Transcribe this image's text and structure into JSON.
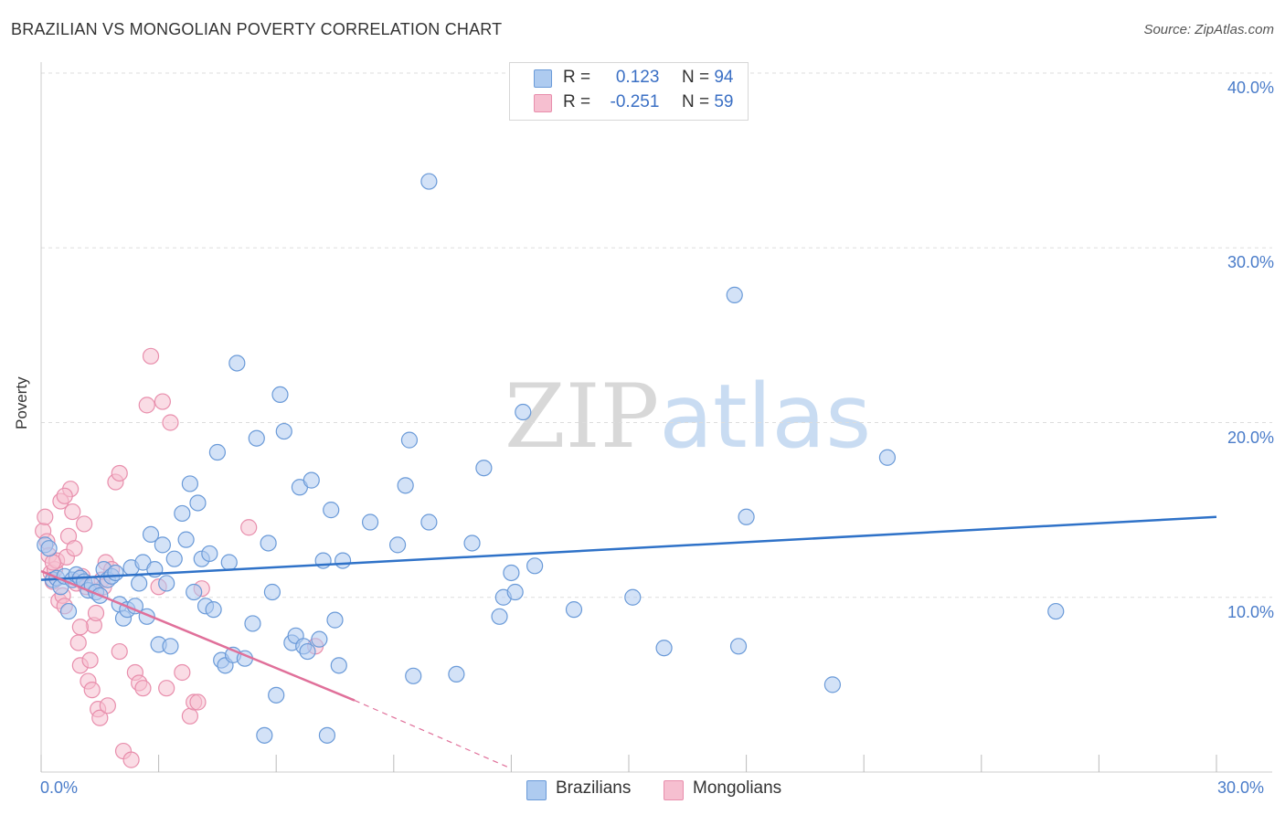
{
  "header": {
    "title": "BRAZILIAN VS MONGOLIAN POVERTY CORRELATION CHART",
    "source": "Source: ZipAtlas.com"
  },
  "watermark": {
    "zip": "ZIP",
    "atlas": "atlas"
  },
  "legend": {
    "rows": [
      {
        "r_label": "R =",
        "r_value": "0.123",
        "n_label": "N =",
        "n_value": "94"
      },
      {
        "r_label": "R =",
        "r_value": "-0.251",
        "n_label": "N =",
        "n_value": "59"
      }
    ]
  },
  "bottom_legend": {
    "brazilians": "Brazilians",
    "mongolians": "Mongolians"
  },
  "colors": {
    "brazilians_fill": "#aecbf0",
    "brazilians_stroke": "#6a9ad8",
    "brazilians_line": "#2f72c8",
    "mongolians_fill": "#f6bfd0",
    "mongolians_stroke": "#e88eac",
    "mongolians_line": "#e0709a",
    "tick_label": "#4a7cc9",
    "grid": "#dddddd"
  },
  "chart_data": {
    "type": "scatter",
    "title": "BRAZILIAN VS MONGOLIAN POVERTY CORRELATION CHART",
    "xlabel": "",
    "ylabel": "Poverty",
    "xlim": [
      0,
      30
    ],
    "ylim": [
      0,
      40
    ],
    "x_tick_labels": [
      "0.0%",
      "30.0%"
    ],
    "y_ticks": [
      10,
      20,
      30,
      40
    ],
    "y_tick_labels": [
      "10.0%",
      "20.0%",
      "30.0%",
      "40.0%"
    ],
    "grid": "horizontal dashed",
    "legend_position": "top-center",
    "series": [
      {
        "name": "Brazilians",
        "r": 0.123,
        "n": 94,
        "trend": {
          "x": [
            0,
            30
          ],
          "y": [
            11.0,
            14.6
          ]
        },
        "points": [
          [
            0.1,
            13.0
          ],
          [
            0.2,
            12.8
          ],
          [
            0.3,
            11.0
          ],
          [
            0.4,
            11.1
          ],
          [
            0.5,
            10.6
          ],
          [
            0.6,
            11.2
          ],
          [
            0.7,
            9.2
          ],
          [
            0.8,
            11.0
          ],
          [
            0.9,
            11.3
          ],
          [
            1.0,
            11.1
          ],
          [
            1.1,
            10.9
          ],
          [
            1.2,
            10.4
          ],
          [
            1.3,
            10.7
          ],
          [
            1.4,
            10.3
          ],
          [
            1.5,
            10.1
          ],
          [
            1.6,
            11.6
          ],
          [
            1.7,
            11.0
          ],
          [
            1.8,
            11.2
          ],
          [
            1.9,
            11.4
          ],
          [
            2.0,
            9.6
          ],
          [
            2.1,
            8.8
          ],
          [
            2.2,
            9.3
          ],
          [
            2.3,
            11.7
          ],
          [
            2.4,
            9.5
          ],
          [
            2.5,
            10.8
          ],
          [
            2.6,
            12.0
          ],
          [
            2.7,
            8.9
          ],
          [
            2.8,
            13.6
          ],
          [
            2.9,
            11.6
          ],
          [
            3.0,
            7.3
          ],
          [
            3.1,
            13.0
          ],
          [
            3.2,
            10.8
          ],
          [
            3.3,
            7.2
          ],
          [
            3.4,
            12.2
          ],
          [
            3.6,
            14.8
          ],
          [
            3.7,
            13.3
          ],
          [
            3.8,
            16.5
          ],
          [
            3.9,
            10.3
          ],
          [
            4.0,
            15.4
          ],
          [
            4.1,
            12.2
          ],
          [
            4.2,
            9.5
          ],
          [
            4.3,
            12.5
          ],
          [
            4.4,
            9.3
          ],
          [
            4.5,
            18.3
          ],
          [
            4.6,
            6.4
          ],
          [
            4.7,
            6.1
          ],
          [
            4.8,
            12.0
          ],
          [
            4.9,
            6.7
          ],
          [
            5.0,
            23.4
          ],
          [
            5.2,
            6.5
          ],
          [
            5.4,
            8.5
          ],
          [
            5.5,
            19.1
          ],
          [
            5.7,
            2.1
          ],
          [
            5.8,
            13.1
          ],
          [
            5.9,
            10.3
          ],
          [
            6.0,
            4.4
          ],
          [
            6.1,
            21.6
          ],
          [
            6.2,
            19.5
          ],
          [
            6.4,
            7.4
          ],
          [
            6.5,
            7.8
          ],
          [
            6.6,
            16.3
          ],
          [
            6.7,
            7.2
          ],
          [
            6.8,
            6.9
          ],
          [
            6.9,
            16.7
          ],
          [
            7.1,
            7.6
          ],
          [
            7.2,
            12.1
          ],
          [
            7.3,
            2.1
          ],
          [
            7.4,
            15.0
          ],
          [
            7.5,
            8.7
          ],
          [
            7.6,
            6.1
          ],
          [
            7.7,
            12.1
          ],
          [
            8.4,
            14.3
          ],
          [
            9.1,
            13.0
          ],
          [
            9.3,
            16.4
          ],
          [
            9.4,
            19.0
          ],
          [
            9.5,
            5.5
          ],
          [
            9.9,
            14.3
          ],
          [
            10.6,
            5.6
          ],
          [
            9.9,
            33.8
          ],
          [
            11.0,
            13.1
          ],
          [
            11.3,
            17.4
          ],
          [
            11.7,
            8.9
          ],
          [
            11.8,
            10.0
          ],
          [
            12.0,
            11.4
          ],
          [
            12.1,
            10.3
          ],
          [
            12.3,
            20.6
          ],
          [
            12.6,
            11.8
          ],
          [
            13.6,
            9.3
          ],
          [
            15.1,
            10.0
          ],
          [
            15.9,
            7.1
          ],
          [
            17.7,
            27.3
          ],
          [
            17.8,
            7.2
          ],
          [
            18.0,
            14.6
          ],
          [
            20.2,
            5.0
          ],
          [
            21.6,
            18.0
          ],
          [
            25.9,
            9.2
          ]
        ]
      },
      {
        "name": "Mongolians",
        "r": -0.251,
        "n": 59,
        "trend": {
          "x": [
            0,
            8.0
          ],
          "y": [
            11.5,
            4.1
          ]
        },
        "trend_dashed": {
          "x": [
            8.0,
            12.0
          ],
          "y": [
            4.1,
            0.2
          ]
        },
        "points": [
          [
            0.05,
            13.8
          ],
          [
            0.1,
            14.6
          ],
          [
            0.15,
            13.2
          ],
          [
            0.2,
            12.4
          ],
          [
            0.25,
            11.4
          ],
          [
            0.3,
            10.9
          ],
          [
            0.35,
            11.6
          ],
          [
            0.4,
            12.1
          ],
          [
            0.45,
            9.8
          ],
          [
            0.5,
            15.5
          ],
          [
            0.55,
            10.1
          ],
          [
            0.6,
            9.5
          ],
          [
            0.65,
            12.3
          ],
          [
            0.7,
            13.5
          ],
          [
            0.75,
            16.2
          ],
          [
            0.8,
            14.9
          ],
          [
            0.85,
            12.8
          ],
          [
            0.9,
            10.8
          ],
          [
            0.95,
            7.4
          ],
          [
            1.0,
            6.1
          ],
          [
            1.05,
            11.2
          ],
          [
            1.1,
            14.2
          ],
          [
            1.15,
            10.6
          ],
          [
            1.2,
            5.2
          ],
          [
            1.25,
            6.4
          ],
          [
            1.3,
            4.7
          ],
          [
            1.35,
            8.4
          ],
          [
            1.4,
            9.1
          ],
          [
            1.45,
            3.6
          ],
          [
            1.5,
            3.1
          ],
          [
            1.55,
            11.0
          ],
          [
            1.6,
            10.6
          ],
          [
            1.65,
            12.0
          ],
          [
            1.7,
            3.8
          ],
          [
            1.8,
            11.6
          ],
          [
            1.9,
            16.6
          ],
          [
            2.0,
            17.1
          ],
          [
            2.0,
            6.9
          ],
          [
            2.1,
            1.2
          ],
          [
            2.3,
            0.7
          ],
          [
            2.4,
            5.7
          ],
          [
            2.5,
            5.1
          ],
          [
            2.6,
            4.8
          ],
          [
            2.7,
            21.0
          ],
          [
            2.8,
            23.8
          ],
          [
            3.0,
            10.6
          ],
          [
            3.1,
            21.2
          ],
          [
            3.2,
            4.8
          ],
          [
            3.3,
            20.0
          ],
          [
            3.6,
            5.7
          ],
          [
            3.8,
            3.2
          ],
          [
            3.9,
            4.0
          ],
          [
            4.0,
            4.0
          ],
          [
            4.1,
            10.5
          ],
          [
            5.3,
            14.0
          ],
          [
            7.0,
            7.2
          ],
          [
            0.3,
            12.0
          ],
          [
            0.6,
            15.8
          ],
          [
            1.0,
            8.3
          ]
        ]
      }
    ]
  }
}
